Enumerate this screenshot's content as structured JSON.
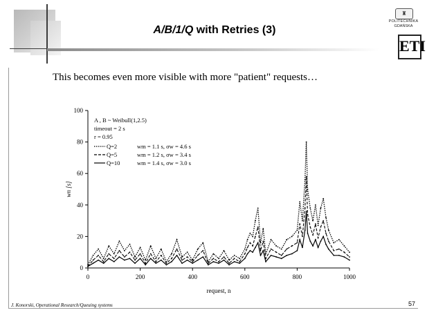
{
  "slide": {
    "title_prefix": "A/B/1/Q",
    "title_suffix": " with Retries (3)",
    "subtitle": "This becomes even more visible with more \"patient\" requests…",
    "footer": "J. Konorski, Operational Research/Queuing systems",
    "page_number": "57",
    "logo": {
      "line1": "POLITECHNIKA",
      "line2": "GDAŃSKA",
      "mark": "ETI"
    }
  },
  "chart_data": {
    "type": "line",
    "xlabel": "request, n",
    "ylabel": "wn [s]",
    "xlim": [
      0,
      1000
    ],
    "ylim": [
      0,
      100
    ],
    "xticks": [
      0,
      200,
      400,
      600,
      800,
      1000
    ],
    "yticks": [
      0,
      20,
      40,
      60,
      80,
      100
    ],
    "grid": false,
    "annotations": [
      "A , B ~ Weibull(1,2.5)",
      "timeout = 2 s",
      "r = 0.95"
    ],
    "legend_position": "top-left",
    "series": [
      {
        "name": "Q=2",
        "stat": "wm = 1.1 s, σw = 4.6 s",
        "style": "dotted",
        "x": [
          0,
          20,
          40,
          60,
          80,
          100,
          120,
          140,
          160,
          180,
          200,
          220,
          240,
          260,
          280,
          300,
          320,
          340,
          360,
          380,
          400,
          420,
          440,
          460,
          480,
          500,
          520,
          540,
          560,
          580,
          600,
          610,
          620,
          630,
          640,
          650,
          660,
          670,
          680,
          700,
          720,
          740,
          760,
          780,
          800,
          810,
          820,
          830,
          835,
          840,
          850,
          860,
          870,
          880,
          890,
          900,
          910,
          920,
          940,
          960,
          980,
          1000
        ],
        "y": [
          2,
          8,
          12,
          6,
          14,
          9,
          17,
          11,
          15,
          7,
          13,
          5,
          14,
          6,
          12,
          4,
          9,
          18,
          7,
          10,
          5,
          12,
          16,
          4,
          9,
          6,
          11,
          5,
          8,
          6,
          12,
          18,
          22,
          20,
          30,
          38,
          16,
          25,
          9,
          18,
          14,
          12,
          18,
          20,
          24,
          42,
          30,
          56,
          80,
          50,
          38,
          30,
          40,
          27,
          38,
          44,
          32,
          24,
          16,
          18,
          14,
          10
        ]
      },
      {
        "name": "Q=5",
        "stat": "wm = 1.2 s, σw = 3.4 s",
        "style": "dashed",
        "x": [
          0,
          20,
          40,
          60,
          80,
          100,
          120,
          140,
          160,
          180,
          200,
          220,
          240,
          260,
          280,
          300,
          320,
          340,
          360,
          380,
          400,
          420,
          440,
          460,
          480,
          500,
          520,
          540,
          560,
          580,
          600,
          610,
          620,
          630,
          640,
          650,
          660,
          670,
          680,
          700,
          720,
          740,
          760,
          780,
          800,
          810,
          820,
          830,
          835,
          840,
          850,
          860,
          870,
          880,
          890,
          900,
          910,
          920,
          940,
          960,
          980,
          1000
        ],
        "y": [
          1,
          5,
          8,
          4,
          9,
          6,
          11,
          7,
          10,
          5,
          9,
          3,
          9,
          4,
          8,
          3,
          6,
          12,
          5,
          7,
          4,
          8,
          11,
          3,
          6,
          4,
          7,
          3,
          6,
          4,
          9,
          13,
          16,
          14,
          20,
          26,
          11,
          17,
          6,
          12,
          10,
          8,
          12,
          14,
          16,
          28,
          20,
          38,
          58,
          34,
          26,
          21,
          28,
          19,
          26,
          30,
          22,
          17,
          11,
          12,
          10,
          7
        ]
      },
      {
        "name": "Q=10",
        "stat": "wm = 1.4 s, σw = 3.0 s",
        "style": "solid",
        "x": [
          0,
          20,
          40,
          60,
          80,
          100,
          120,
          140,
          160,
          180,
          200,
          220,
          240,
          260,
          280,
          300,
          320,
          340,
          360,
          380,
          400,
          420,
          440,
          460,
          480,
          500,
          520,
          540,
          560,
          580,
          600,
          610,
          620,
          630,
          640,
          650,
          660,
          670,
          680,
          700,
          720,
          740,
          760,
          780,
          800,
          810,
          820,
          830,
          835,
          840,
          850,
          860,
          870,
          880,
          890,
          900,
          910,
          920,
          940,
          960,
          980,
          1000
        ],
        "y": [
          1,
          3,
          5,
          3,
          6,
          4,
          7,
          5,
          6,
          3,
          6,
          2,
          6,
          3,
          5,
          2,
          4,
          8,
          3,
          5,
          3,
          5,
          7,
          2,
          4,
          3,
          5,
          2,
          4,
          3,
          6,
          9,
          11,
          10,
          13,
          16,
          8,
          11,
          4,
          8,
          7,
          6,
          8,
          9,
          11,
          18,
          13,
          24,
          36,
          22,
          17,
          14,
          18,
          13,
          17,
          20,
          15,
          12,
          8,
          8,
          7,
          5
        ]
      }
    ]
  }
}
